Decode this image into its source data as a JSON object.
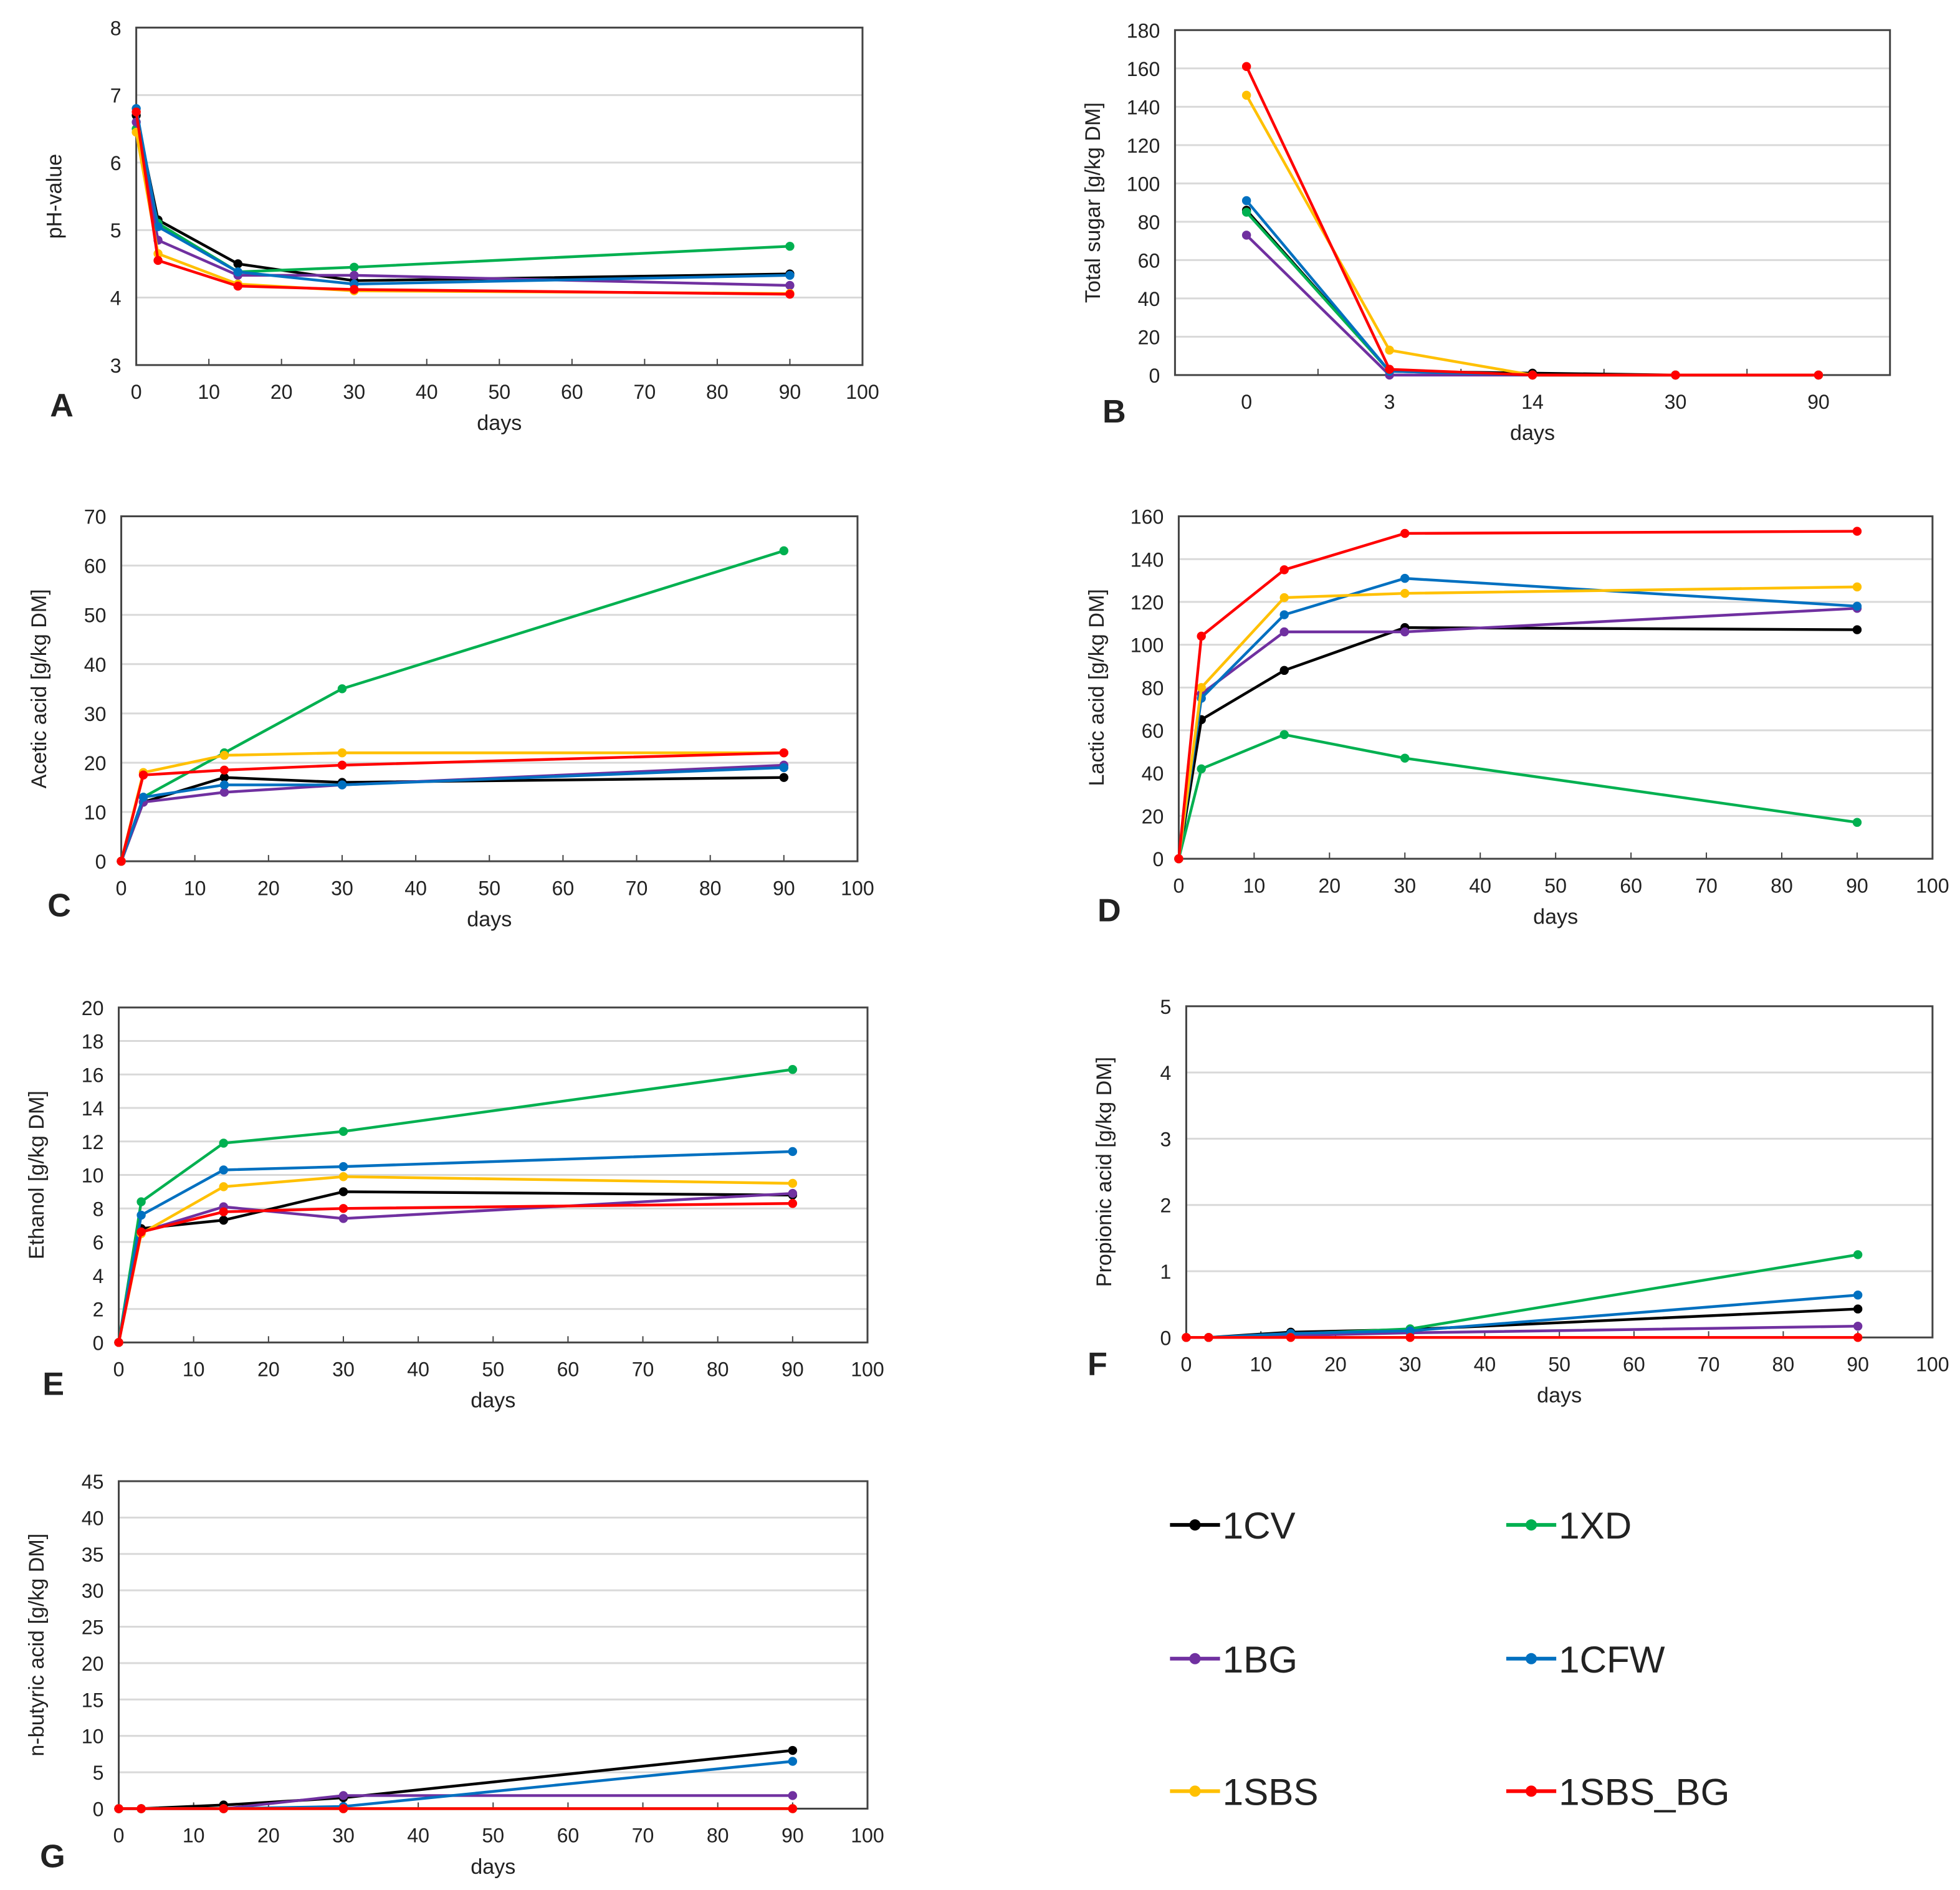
{
  "series_meta": [
    {
      "name": "1CV",
      "color": "#000000"
    },
    {
      "name": "1XD",
      "color": "#00b050"
    },
    {
      "name": "1BG",
      "color": "#7030a0"
    },
    {
      "name": "1CFW",
      "color": "#0070c0"
    },
    {
      "name": "1SBS",
      "color": "#ffc000"
    },
    {
      "name": "1SBS_BG",
      "color": "#ff0000"
    }
  ],
  "chart_data": [
    {
      "panel": "A",
      "type": "line",
      "xlabel": "days",
      "ylabel": "pH-value",
      "ylim": [
        3,
        8
      ],
      "ystep": 1,
      "xlim": [
        0,
        100
      ],
      "xstep": 10,
      "x": [
        0,
        3,
        14,
        30,
        90
      ],
      "grid": true,
      "series": [
        {
          "name": "1CV",
          "values": [
            6.7,
            5.15,
            4.5,
            4.25,
            4.35
          ]
        },
        {
          "name": "1XD",
          "values": [
            6.5,
            5.1,
            4.38,
            4.45,
            4.76
          ]
        },
        {
          "name": "1BG",
          "values": [
            6.6,
            4.85,
            4.33,
            4.33,
            4.18
          ]
        },
        {
          "name": "1CFW",
          "values": [
            6.8,
            5.05,
            4.38,
            4.2,
            4.33
          ]
        },
        {
          "name": "1SBS",
          "values": [
            6.45,
            4.65,
            4.2,
            4.1,
            4.06
          ]
        },
        {
          "name": "1SBS_BG",
          "values": [
            6.75,
            4.55,
            4.17,
            4.12,
            4.05
          ]
        }
      ]
    },
    {
      "panel": "B",
      "type": "line",
      "xlabel": "days",
      "ylabel": "Total sugar  [g/kg DM]",
      "ylim": [
        0,
        180
      ],
      "ystep": 20,
      "categories": [
        "0",
        "3",
        "14",
        "30",
        "90"
      ],
      "grid": true,
      "series": [
        {
          "name": "1CV",
          "values": [
            86,
            2,
            1,
            0,
            0
          ]
        },
        {
          "name": "1XD",
          "values": [
            85,
            2,
            0,
            0,
            0
          ]
        },
        {
          "name": "1BG",
          "values": [
            73,
            0,
            0,
            0,
            0
          ]
        },
        {
          "name": "1CFW",
          "values": [
            91,
            2,
            0,
            0,
            0
          ]
        },
        {
          "name": "1SBS",
          "values": [
            146,
            13,
            0,
            0,
            0
          ]
        },
        {
          "name": "1SBS_BG",
          "values": [
            161,
            3,
            0,
            0,
            0
          ]
        }
      ]
    },
    {
      "panel": "C",
      "type": "line",
      "xlabel": "days",
      "ylabel": "Acetic acid [g/kg DM]",
      "ylim": [
        0,
        70
      ],
      "ystep": 10,
      "xlim": [
        0,
        100
      ],
      "xstep": 10,
      "x": [
        0,
        3,
        14,
        30,
        90
      ],
      "grid": true,
      "series": [
        {
          "name": "1CV",
          "values": [
            0,
            12,
            17,
            16,
            17
          ]
        },
        {
          "name": "1XD",
          "values": [
            0,
            13,
            22,
            35,
            63
          ]
        },
        {
          "name": "1BG",
          "values": [
            0,
            12,
            14,
            15.5,
            19.5
          ]
        },
        {
          "name": "1CFW",
          "values": [
            0,
            13,
            15.5,
            15.5,
            19
          ]
        },
        {
          "name": "1SBS",
          "values": [
            0,
            18,
            21.5,
            22,
            22
          ]
        },
        {
          "name": "1SBS_BG",
          "values": [
            0,
            17.5,
            18.5,
            19.5,
            22
          ]
        }
      ]
    },
    {
      "panel": "D",
      "type": "line",
      "xlabel": "days",
      "ylabel": "Lactic acid [g/kg DM]",
      "ylim": [
        0,
        160
      ],
      "ystep": 20,
      "xlim": [
        0,
        100
      ],
      "xstep": 10,
      "x": [
        0,
        3,
        14,
        30,
        90
      ],
      "grid": true,
      "series": [
        {
          "name": "1CV",
          "values": [
            0,
            65,
            88,
            108,
            107
          ]
        },
        {
          "name": "1XD",
          "values": [
            0,
            42,
            58,
            47,
            17
          ]
        },
        {
          "name": "1BG",
          "values": [
            0,
            77,
            106,
            106,
            117
          ]
        },
        {
          "name": "1CFW",
          "values": [
            0,
            75,
            114,
            131,
            118
          ]
        },
        {
          "name": "1SBS",
          "values": [
            0,
            80,
            122,
            124,
            127
          ]
        },
        {
          "name": "1SBS_BG",
          "values": [
            0,
            104,
            135,
            152,
            153
          ]
        }
      ]
    },
    {
      "panel": "E",
      "type": "line",
      "xlabel": "days",
      "ylabel": "Ethanol [g/kg DM]",
      "ylim": [
        0,
        20
      ],
      "ystep": 2,
      "xlim": [
        0,
        100
      ],
      "xstep": 10,
      "x": [
        0,
        3,
        14,
        30,
        90
      ],
      "grid": true,
      "series": [
        {
          "name": "1CV",
          "values": [
            0,
            6.8,
            7.3,
            9,
            8.8
          ]
        },
        {
          "name": "1XD",
          "values": [
            0,
            8.4,
            11.9,
            12.6,
            16.3
          ]
        },
        {
          "name": "1BG",
          "values": [
            0,
            6.6,
            8.1,
            7.4,
            8.9
          ]
        },
        {
          "name": "1CFW",
          "values": [
            0,
            7.6,
            10.3,
            10.5,
            11.4
          ]
        },
        {
          "name": "1SBS",
          "values": [
            0,
            6.5,
            9.3,
            9.9,
            9.5
          ]
        },
        {
          "name": "1SBS_BG",
          "values": [
            0,
            6.6,
            7.8,
            8,
            8.3
          ]
        }
      ]
    },
    {
      "panel": "F",
      "type": "line",
      "xlabel": "days",
      "ylabel": "Propionic acid [g/kg DM]",
      "ylim": [
        0,
        5
      ],
      "ystep": 1,
      "xlim": [
        0,
        100
      ],
      "xstep": 10,
      "x": [
        0,
        3,
        14,
        30,
        90
      ],
      "grid": true,
      "series": [
        {
          "name": "1CV",
          "values": [
            0,
            0,
            0.08,
            0.12,
            0.43
          ]
        },
        {
          "name": "1XD",
          "values": [
            0,
            0,
            0.05,
            0.13,
            1.25
          ]
        },
        {
          "name": "1BG",
          "values": [
            0,
            0,
            0.03,
            0.07,
            0.17
          ]
        },
        {
          "name": "1CFW",
          "values": [
            0,
            0,
            0.06,
            0.1,
            0.64
          ]
        },
        {
          "name": "1SBS",
          "values": [
            0,
            0,
            0,
            0,
            0
          ]
        },
        {
          "name": "1SBS_BG",
          "values": [
            0,
            0,
            0,
            0,
            0
          ]
        }
      ]
    },
    {
      "panel": "G",
      "type": "line",
      "xlabel": "days",
      "ylabel": "n-butyric acid [g/kg DM]",
      "ylim": [
        0,
        45
      ],
      "ystep": 5,
      "xlim": [
        0,
        100
      ],
      "xstep": 10,
      "x": [
        0,
        3,
        14,
        30,
        90
      ],
      "grid": true,
      "series": [
        {
          "name": "1CV",
          "values": [
            0,
            0,
            0.5,
            1.5,
            8
          ]
        },
        {
          "name": "1XD",
          "values": [
            0,
            0,
            0,
            0,
            0
          ]
        },
        {
          "name": "1BG",
          "values": [
            0,
            0,
            0,
            1.8,
            1.8
          ]
        },
        {
          "name": "1CFW",
          "values": [
            0,
            0,
            0,
            0.3,
            6.5
          ]
        },
        {
          "name": "1SBS",
          "values": [
            0,
            0,
            0,
            0,
            0
          ]
        },
        {
          "name": "1SBS_BG",
          "values": [
            0,
            0,
            0,
            0,
            0
          ]
        }
      ]
    }
  ]
}
